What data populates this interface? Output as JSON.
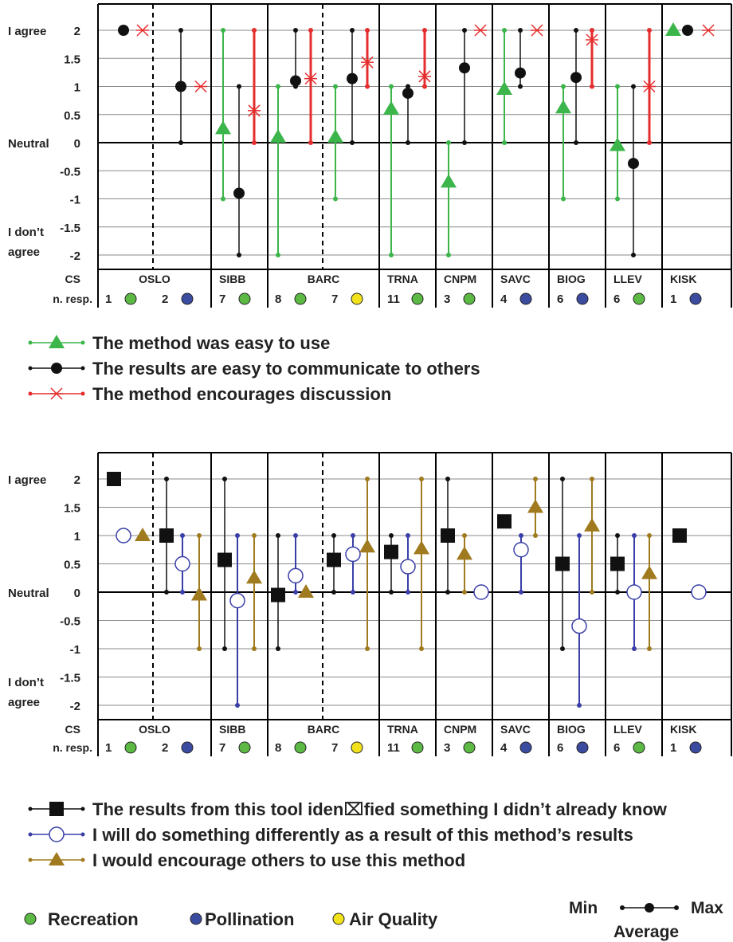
{
  "chart_data": [
    {
      "type": "range-plot",
      "y_ticks": [
        {
          "value": 2,
          "label": "2",
          "side_label": "I agree"
        },
        {
          "value": 1.5,
          "label": "1.5"
        },
        {
          "value": 1,
          "label": "1"
        },
        {
          "value": 0.5,
          "label": "0.5"
        },
        {
          "value": 0,
          "label": "0",
          "side_label": "Neutral"
        },
        {
          "value": -0.5,
          "label": "-0.5"
        },
        {
          "value": -1,
          "label": "-1"
        },
        {
          "value": -1.5,
          "label": "-1.5"
        },
        {
          "value": -2,
          "label": "-2"
        }
      ],
      "disagree_label": [
        "I don’t",
        "agree"
      ],
      "ylim": [
        -2,
        2
      ],
      "header_labels": {
        "cs": "CS",
        "resp": "n. resp."
      },
      "groups": [
        {
          "name": "OSLO",
          "subgroups": [
            {
              "resp": "1",
              "color": "green"
            },
            {
              "resp": "2",
              "color": "blue"
            }
          ]
        },
        {
          "name": "SIBB",
          "subgroups": [
            {
              "resp": "7",
              "color": "green"
            }
          ]
        },
        {
          "name": "BARC",
          "subgroups": [
            {
              "resp": "8",
              "color": "green"
            },
            {
              "resp": "7",
              "color": "yellow"
            }
          ]
        },
        {
          "name": "TRNA",
          "subgroups": [
            {
              "resp": "11",
              "color": "green"
            }
          ]
        },
        {
          "name": "CNPM",
          "subgroups": [
            {
              "resp": "3",
              "color": "green"
            }
          ]
        },
        {
          "name": "SAVC",
          "subgroups": [
            {
              "resp": "4",
              "color": "blue"
            }
          ]
        },
        {
          "name": "BIOG",
          "subgroups": [
            {
              "resp": "6",
              "color": "blue"
            }
          ]
        },
        {
          "name": "LLEV",
          "subgroups": [
            {
              "resp": "6",
              "color": "green"
            }
          ]
        },
        {
          "name": "KISK",
          "subgroups": [
            {
              "resp": "1",
              "color": "blue"
            }
          ]
        }
      ],
      "series": [
        {
          "name": "The method was easy to use",
          "color": "#3cb54a",
          "marker": "triangle",
          "line_width": 2,
          "points": [
            null,
            null,
            [
              -1,
              0.25,
              2
            ],
            [
              -2,
              0.1,
              1
            ],
            [
              -1,
              0.1,
              1
            ],
            [
              -2,
              0.6,
              1
            ],
            [
              -2,
              -0.7,
              0
            ],
            [
              0,
              0.95,
              2
            ],
            [
              -1,
              0.62,
              1
            ],
            [
              -1,
              -0.05,
              1
            ],
            [
              2,
              2,
              2
            ]
          ]
        },
        {
          "name": "The results are easy to communicate to others",
          "color": "#111111",
          "marker": "circle",
          "line_width": 1.5,
          "points": [
            [
              2,
              2,
              2
            ],
            [
              0,
              1,
              2
            ],
            [
              -2,
              -0.9,
              1
            ],
            [
              1,
              1.1,
              2
            ],
            [
              0,
              1.14,
              2
            ],
            [
              0,
              0.88,
              1
            ],
            [
              0,
              1.33,
              2
            ],
            [
              1,
              1.24,
              2
            ],
            [
              0,
              1.16,
              2
            ],
            [
              -2,
              -0.37,
              1
            ],
            [
              2,
              2,
              2
            ]
          ]
        },
        {
          "name": "The method encourages discussion",
          "color": "#e52d2d",
          "marker": "star",
          "line_width": 3,
          "points": [
            [
              2,
              2,
              2
            ],
            [
              1,
              1,
              1
            ],
            [
              0,
              0.57,
              2
            ],
            [
              0,
              1.14,
              2
            ],
            [
              1,
              1.43,
              2
            ],
            [
              1,
              1.18,
              2
            ],
            [
              2,
              2,
              2
            ],
            [
              2,
              2,
              2
            ],
            [
              1,
              1.83,
              2
            ],
            [
              0,
              1,
              2
            ],
            [
              2,
              2,
              2
            ]
          ]
        }
      ]
    },
    {
      "type": "range-plot",
      "y_ticks": [
        {
          "value": 2,
          "label": "2",
          "side_label": "I agree"
        },
        {
          "value": 1.5,
          "label": "1.5"
        },
        {
          "value": 1,
          "label": "1"
        },
        {
          "value": 0.5,
          "label": "0.5"
        },
        {
          "value": 0,
          "label": "0",
          "side_label": "Neutral"
        },
        {
          "value": -0.5,
          "label": "-0.5"
        },
        {
          "value": -1,
          "label": "-1"
        },
        {
          "value": -1.5,
          "label": "-1.5"
        },
        {
          "value": -2,
          "label": "-2"
        }
      ],
      "disagree_label": [
        "I don’t",
        "agree"
      ],
      "ylim": [
        -2,
        2
      ],
      "header_labels": {
        "cs": "CS",
        "resp": "n. resp."
      },
      "groups": [
        {
          "name": "OSLO",
          "subgroups": [
            {
              "resp": "1",
              "color": "green"
            },
            {
              "resp": "2",
              "color": "blue"
            }
          ]
        },
        {
          "name": "SIBB",
          "subgroups": [
            {
              "resp": "7",
              "color": "green"
            }
          ]
        },
        {
          "name": "BARC",
          "subgroups": [
            {
              "resp": "8",
              "color": "green"
            },
            {
              "resp": "7",
              "color": "yellow"
            }
          ]
        },
        {
          "name": "TRNA",
          "subgroups": [
            {
              "resp": "11",
              "color": "green"
            }
          ]
        },
        {
          "name": "CNPM",
          "subgroups": [
            {
              "resp": "3",
              "color": "green"
            }
          ]
        },
        {
          "name": "SAVC",
          "subgroups": [
            {
              "resp": "4",
              "color": "blue"
            }
          ]
        },
        {
          "name": "BIOG",
          "subgroups": [
            {
              "resp": "6",
              "color": "blue"
            }
          ]
        },
        {
          "name": "LLEV",
          "subgroups": [
            {
              "resp": "6",
              "color": "green"
            }
          ]
        },
        {
          "name": "KISK",
          "subgroups": [
            {
              "resp": "1",
              "color": "blue"
            }
          ]
        }
      ],
      "series": [
        {
          "name": "The results from this tool iden⌧fied something I didn’t already know",
          "color": "#111111",
          "marker": "square",
          "line_width": 1.5,
          "points": [
            [
              2,
              2,
              2
            ],
            [
              0,
              1,
              2
            ],
            [
              -1,
              0.57,
              2
            ],
            [
              -1,
              -0.05,
              1
            ],
            [
              0,
              0.57,
              1
            ],
            [
              0,
              0.71,
              1
            ],
            [
              0,
              1,
              2
            ],
            [
              1,
              1.25,
              1
            ],
            [
              -1,
              0.5,
              2
            ],
            [
              0,
              0.5,
              1
            ],
            [
              1,
              1,
              1
            ]
          ]
        },
        {
          "name": "I will do something differently as a result of this method’s results",
          "color": "#3a3fa8",
          "marker": "hollow-circle",
          "line_width": 2,
          "points": [
            [
              1,
              1,
              1
            ],
            [
              0,
              0.5,
              1
            ],
            [
              -2,
              -0.15,
              1
            ],
            [
              0,
              0.29,
              1
            ],
            [
              0,
              0.67,
              1
            ],
            [
              0,
              0.45,
              1
            ],
            [
              0,
              0,
              0
            ],
            [
              0,
              0.75,
              1
            ],
            [
              -2,
              -0.6,
              1
            ],
            [
              -1,
              0,
              1
            ],
            [
              0,
              0,
              0
            ]
          ]
        },
        {
          "name": "I would encourage others to use this method",
          "color": "#a07a1e",
          "marker": "triangle",
          "line_width": 2,
          "points": [
            [
              1,
              1,
              1
            ],
            [
              -1,
              -0.05,
              1
            ],
            [
              -1,
              0.25,
              1
            ],
            [
              0,
              0,
              0
            ],
            [
              -1,
              0.8,
              2
            ],
            [
              -1,
              0.77,
              2
            ],
            [
              0,
              0.67,
              1
            ],
            [
              1,
              1.5,
              2
            ],
            [
              0,
              1.17,
              2
            ],
            [
              -1,
              0.33,
              1
            ],
            null
          ]
        }
      ]
    }
  ],
  "footer": {
    "markers": [
      {
        "label": "Recreation",
        "color": "green"
      },
      {
        "label": "Pollination",
        "color": "blue"
      },
      {
        "label": "Air Quality",
        "color": "yellow"
      }
    ],
    "key": {
      "min": "Min",
      "max": "Max",
      "average": "Average"
    }
  },
  "colors": {
    "green": "#5cb944",
    "blue": "#3b4ba0",
    "yellow": "#f2e21c",
    "grid": "#8a8a8a"
  }
}
